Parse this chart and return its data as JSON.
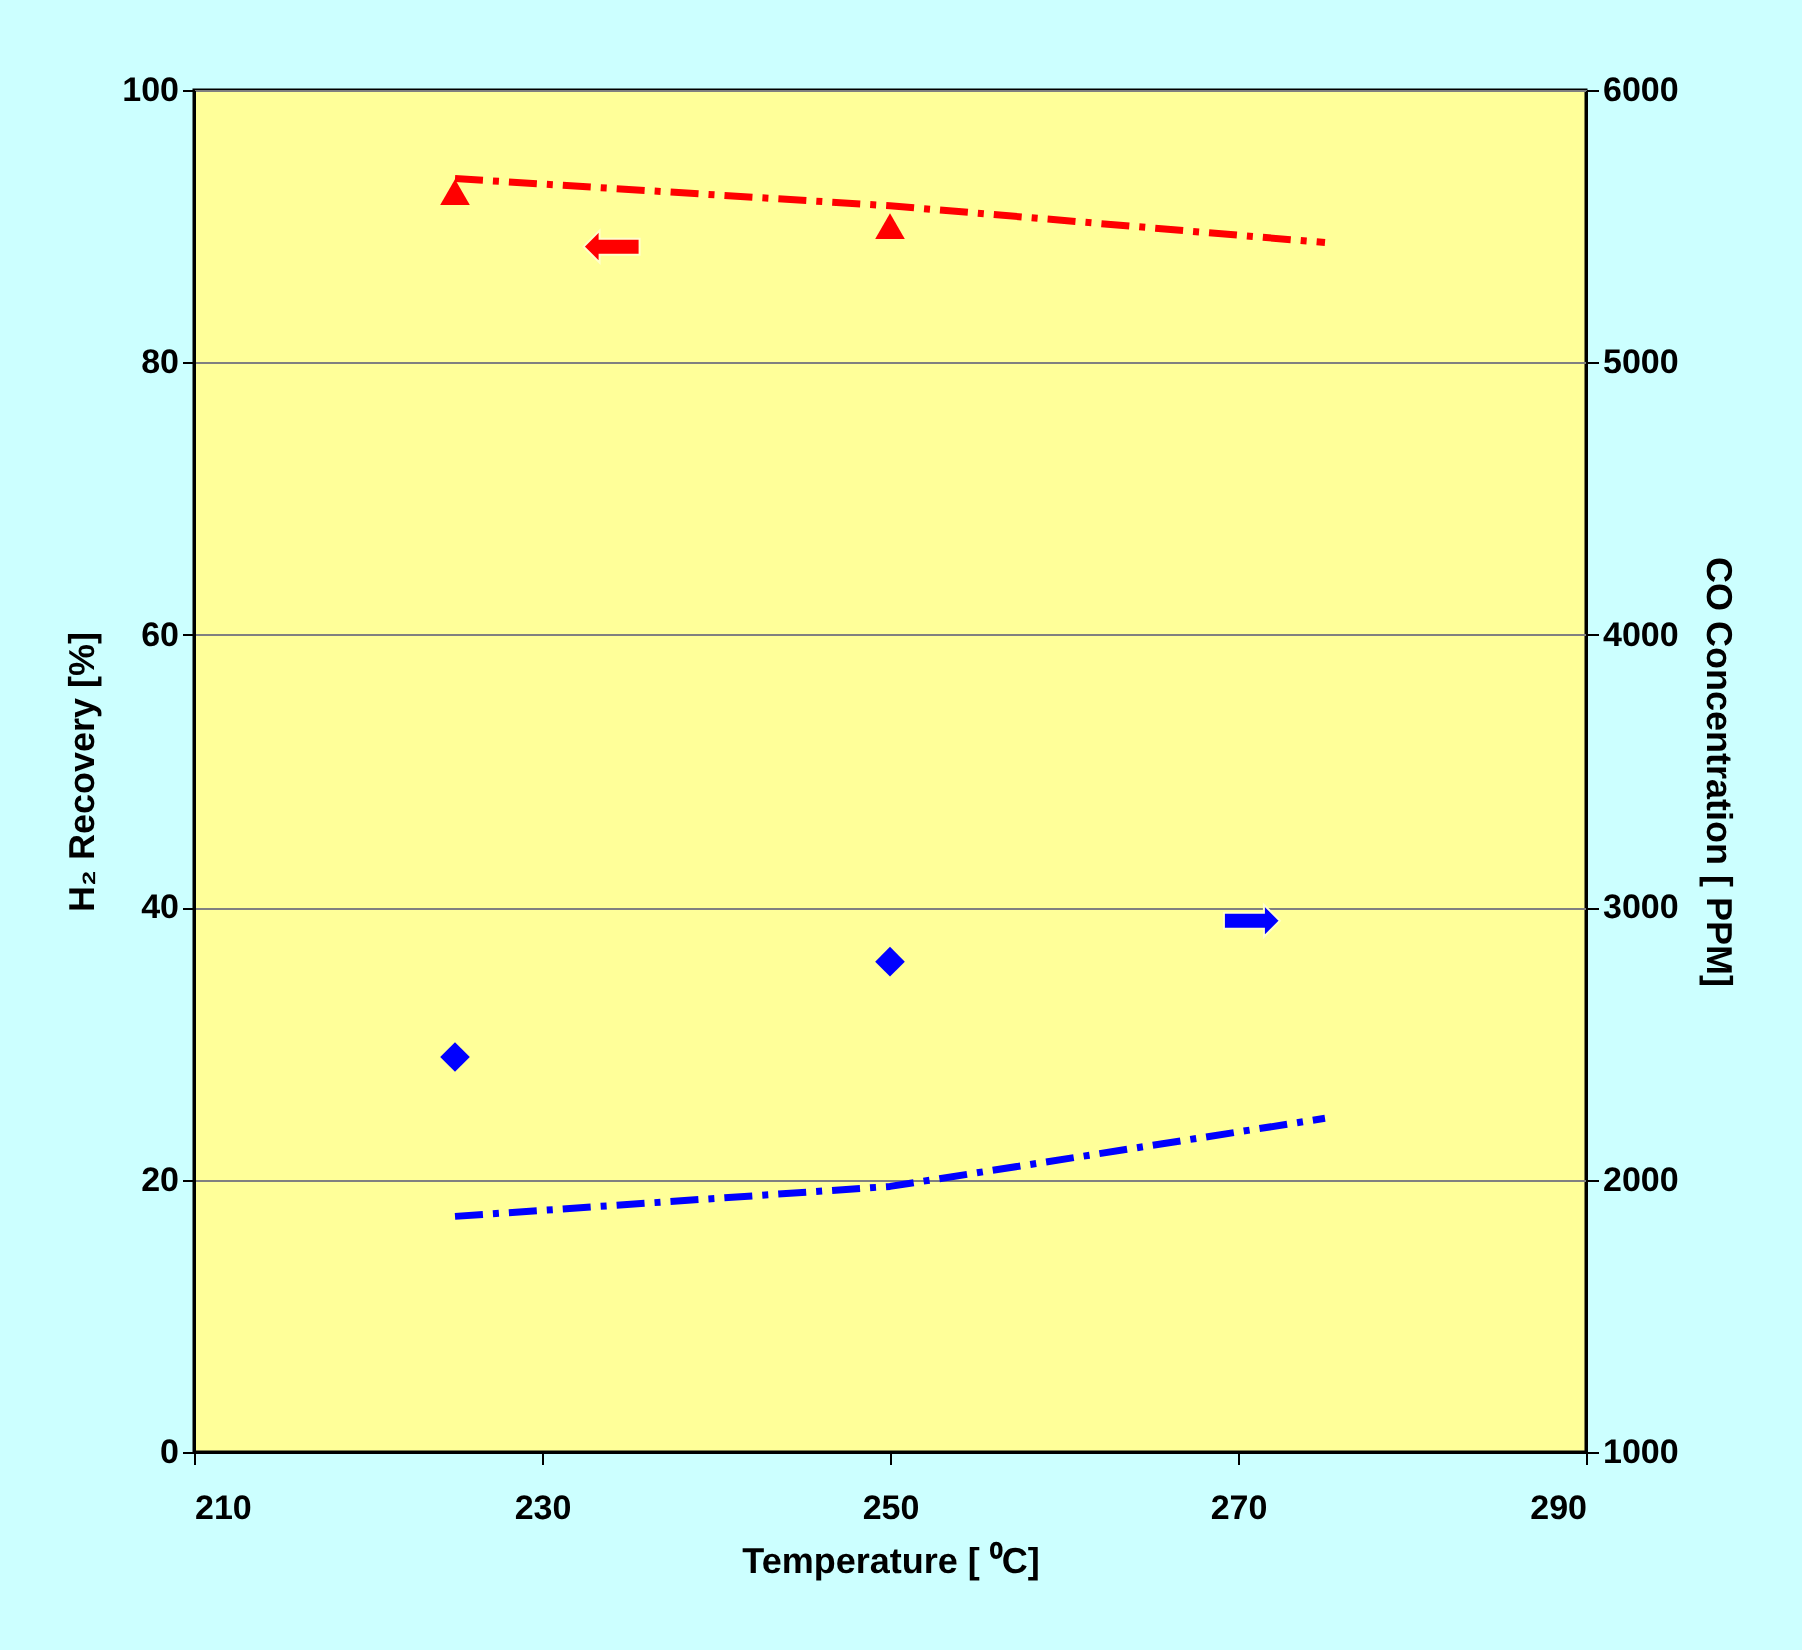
{
  "chart_data": {
    "type": "scatter",
    "xlabel": "Temperature [ ⁰C]",
    "ylabel": "H₂ Recovery [%]",
    "y2label": "CO Concentration [ PPM]",
    "xlim": [
      210,
      290
    ],
    "xticks": [
      210,
      230,
      250,
      270,
      290
    ],
    "ylim": [
      0,
      100
    ],
    "yticks": [
      0,
      20,
      40,
      60,
      80,
      100
    ],
    "y2lim": [
      1000,
      6000
    ],
    "y2ticks": [
      1000,
      2000,
      3000,
      4000,
      5000,
      6000
    ],
    "grid": "y",
    "series": [
      {
        "marker": "triangle",
        "color": "#ff0000",
        "x": [
          225,
          250
        ],
        "values": [
          92.5,
          90
        ]
      },
      {
        "type": "line",
        "marker": "none",
        "line_style": "dashed",
        "color": "#ff0000",
        "x": [
          225,
          250,
          275
        ],
        "values": [
          93.5,
          91.5,
          88.8
        ]
      },
      {
        "marker": "diamond",
        "axis": "y2",
        "color": "#0000ff",
        "x": [
          225,
          250
        ],
        "values": [
          2450,
          2800
        ]
      },
      {
        "type": "line",
        "marker": "none",
        "line_style": "dashed",
        "axis": "y2",
        "color": "#0000ff",
        "x": [
          225,
          250,
          275
        ],
        "values": [
          1865,
          1975,
          2225
        ]
      }
    ]
  }
}
